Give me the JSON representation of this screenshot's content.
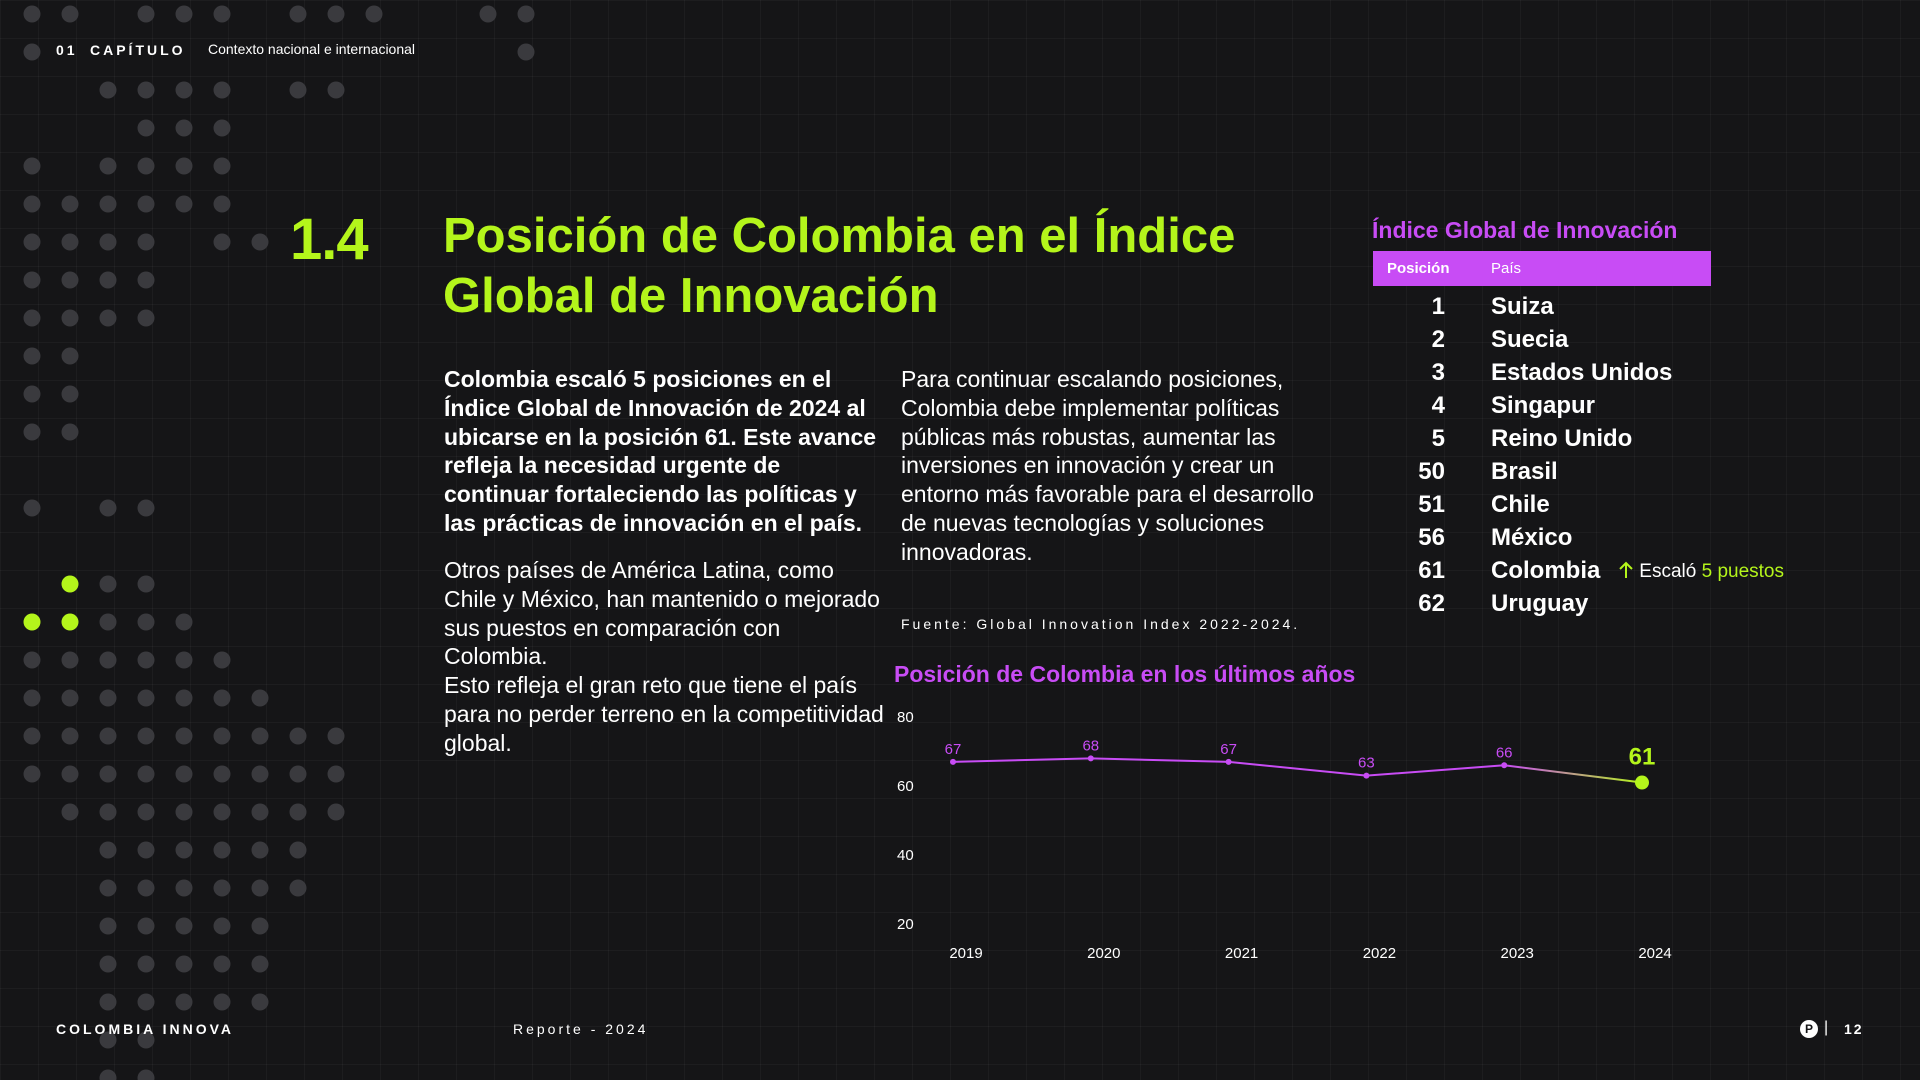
{
  "header": {
    "chapter_number": "01",
    "chapter_word": "CAPÍTULO",
    "chapter_title": "Contexto nacional e internacional"
  },
  "section": {
    "number": "1.4",
    "title": "Posición de Colombia en el Índice Global de Innovación"
  },
  "text": {
    "lead": "Colombia escaló 5 posiciones en el Índice Global de Innovación de 2024 al ubicarse en la posición 61. Este avance refleja la necesidad urgente de continuar fortaleciendo las políticas y las prácticas de innovación en el país.",
    "body1_a": "Otros países de América Latina, como Chile y México, han mantenido o mejorado sus puestos en comparación con Colombia.",
    "body1_b": "Esto refleja el gran reto que tiene el país para no perder terreno en la competitividad global.",
    "body2": "Para continuar escalando posiciones, Colombia debe implementar políticas públicas más robustas, aumentar las inversiones en innovación y crear un entorno más favorable para el desarrollo de nuevas tecnologías y soluciones innovadoras.",
    "source": "Fuente: Global Innovation Index 2022-2024."
  },
  "ranking": {
    "title": "Índice Global de Innovación",
    "col_position": "Posición",
    "col_country": "País",
    "rows": [
      {
        "pos": "1",
        "country": "Suiza"
      },
      {
        "pos": "2",
        "country": "Suecia"
      },
      {
        "pos": "3",
        "country": "Estados Unidos"
      },
      {
        "pos": "4",
        "country": "Singapur"
      },
      {
        "pos": "5",
        "country": "Reino Unido"
      },
      {
        "pos": "50",
        "country": "Brasil"
      },
      {
        "pos": "51",
        "country": "Chile"
      },
      {
        "pos": "56",
        "country": "México"
      },
      {
        "pos": "61",
        "country": "Colombia"
      },
      {
        "pos": "62",
        "country": "Uruguay"
      }
    ],
    "badge_text": "Escaló",
    "badge_highlight": "5 puestos",
    "badge_icon": "arrow-up-icon"
  },
  "chart_data": {
    "type": "line",
    "title": "Posición de Colombia en los últimos años",
    "categories": [
      "2019",
      "2020",
      "2021",
      "2022",
      "2023",
      "2024"
    ],
    "series": [
      {
        "values": [
          67,
          68,
          67,
          63,
          66,
          61
        ]
      }
    ],
    "y_ticks": [
      80,
      60,
      40,
      20
    ],
    "ylim": [
      20,
      80
    ],
    "grid": false,
    "line_color": "#c84cf5",
    "highlight_color": "#b4f51b"
  },
  "footer": {
    "brand": "COLOMBIA INNOVA",
    "report": "Reporte - 2024",
    "logo_letter": "P",
    "separator": "|",
    "page": "12"
  },
  "colors": {
    "background": "#151517",
    "accent_green": "#b4f51b",
    "accent_purple": "#c84cf5",
    "dot_gray": "#3a3a3e"
  }
}
